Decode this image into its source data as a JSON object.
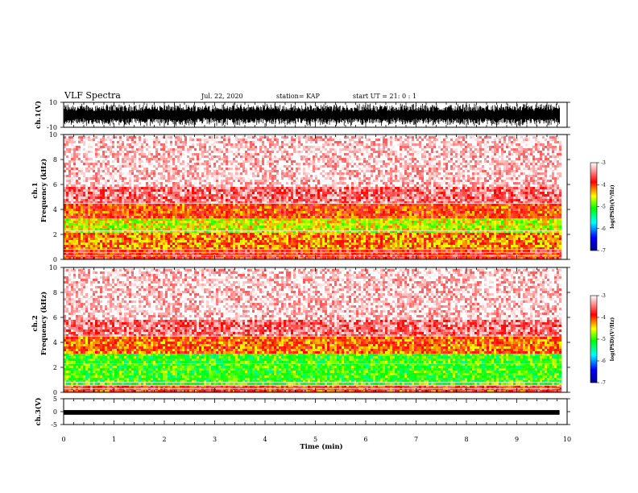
{
  "header": {
    "title": "VLF Spectra",
    "date": "Jul. 22, 2020",
    "station": "station= KAP",
    "start": "start UT =  21: 0  : 1"
  },
  "chart_data": [
    {
      "type": "line",
      "id": "ch1-waveform",
      "ylabel": "ch.1(V)",
      "ylim": [
        -10,
        10
      ],
      "yticks": [
        "10",
        "-10"
      ],
      "x_range_min": [
        0,
        9.85
      ],
      "description_values": "dense noise waveform filling most of the range"
    },
    {
      "type": "heatmap",
      "id": "ch1-spectrogram",
      "ylabel": "ch.1\nFrequency (kHz)",
      "ylim": [
        0,
        10
      ],
      "yticks": [
        "0",
        "2",
        "4",
        "6",
        "8",
        "10"
      ],
      "x_range_min": [
        0,
        9.85
      ],
      "colorbar": {
        "label": "log(PSD)(V²/Hz)",
        "range": [
          -7,
          -3
        ],
        "ticks": [
          "-3",
          "-4",
          "-5",
          "-6",
          "-7"
        ],
        "colors": [
          "#00008b",
          "#0000ff",
          "#00ffff",
          "#00ff00",
          "#ffff00",
          "#ff0000",
          "#ffffff"
        ]
      },
      "bands_khz": [
        {
          "from": 0.0,
          "to": 0.9,
          "level": -3.8
        },
        {
          "from": 0.9,
          "to": 2.2,
          "level": -4.2
        },
        {
          "from": 2.2,
          "to": 3.4,
          "level": -4.6
        },
        {
          "from": 3.4,
          "to": 4.6,
          "level": -4.0
        },
        {
          "from": 4.6,
          "to": 6.0,
          "level": -3.5
        },
        {
          "from": 6.0,
          "to": 10.0,
          "level": -3.15
        }
      ]
    },
    {
      "type": "heatmap",
      "id": "ch2-spectrogram",
      "ylabel": "ch.2\nFrequency (kHz)",
      "ylim": [
        0,
        10
      ],
      "yticks": [
        "0",
        "2",
        "4",
        "6",
        "8",
        "10"
      ],
      "x_range_min": [
        0,
        9.85
      ],
      "colorbar": {
        "label": "log(PSD)(V²/Hz)",
        "range": [
          -7,
          -3
        ],
        "ticks": [
          "-3",
          "-4",
          "-5",
          "-6",
          "-7"
        ],
        "colors": [
          "#00008b",
          "#0000ff",
          "#00ffff",
          "#00ff00",
          "#ffff00",
          "#ff0000",
          "#ffffff"
        ]
      },
      "bands_khz": [
        {
          "from": 0.0,
          "to": 0.6,
          "level": -3.9
        },
        {
          "from": 0.6,
          "to": 3.2,
          "level": -5.0
        },
        {
          "from": 3.2,
          "to": 4.6,
          "level": -4.1
        },
        {
          "from": 4.6,
          "to": 6.0,
          "level": -3.5
        },
        {
          "from": 6.0,
          "to": 10.0,
          "level": -3.15
        }
      ]
    },
    {
      "type": "line",
      "id": "ch3-waveform",
      "ylabel": "ch.3(V)",
      "ylim": [
        -5,
        5
      ],
      "yticks": [
        "5",
        "0",
        "-5"
      ],
      "x_range_min": [
        0,
        9.85
      ],
      "level_v": [
        -1.2,
        0.6
      ]
    }
  ],
  "xaxis": {
    "label": "Time (min)",
    "range": [
      0,
      10
    ],
    "ticks": [
      "0",
      "1",
      "2",
      "3",
      "4",
      "5",
      "6",
      "7",
      "8",
      "9",
      "10"
    ]
  }
}
